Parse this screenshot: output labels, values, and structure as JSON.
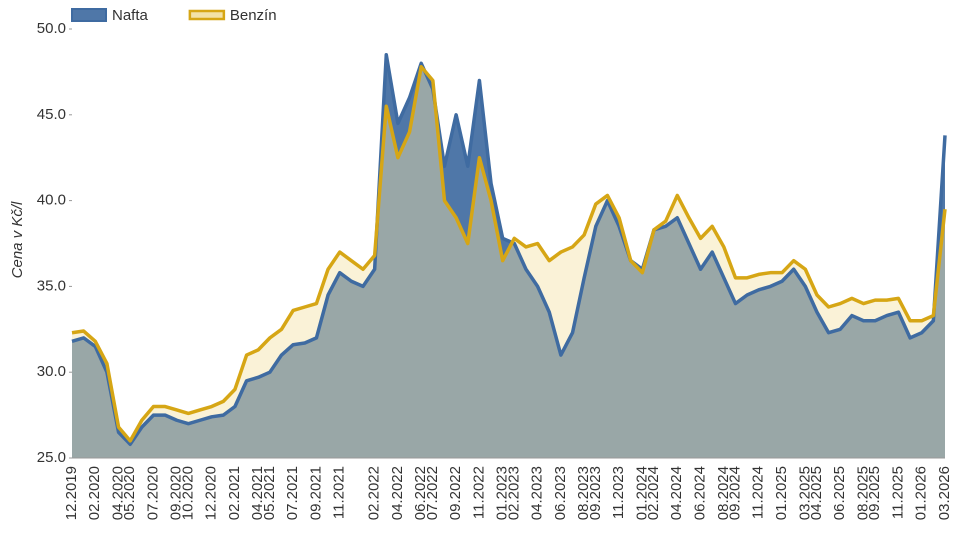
{
  "chart_data": {
    "type": "area",
    "y_label": "Cena v Kč/l",
    "x": [
      "12.2019",
      null,
      "02.2020",
      null,
      "04.2020",
      "05.2020",
      null,
      "07.2020",
      null,
      "09.2020",
      "10.2020",
      null,
      "12.2020",
      null,
      "02.2021",
      null,
      "04.2021",
      "05.2021",
      null,
      "07.2021",
      null,
      "09.2021",
      null,
      "11.2021",
      null,
      null,
      "02.2022",
      null,
      "04.2022",
      null,
      "06.2022",
      "07.2022",
      null,
      "09.2022",
      null,
      "11.2022",
      null,
      "01.2023",
      "02.2023",
      null,
      "04.2023",
      null,
      "06.2023",
      null,
      "08.2023",
      "09.2023",
      null,
      "11.2023",
      null,
      "01.2024",
      "02.2024",
      null,
      "04.2024",
      null,
      "06.2024",
      null,
      "08.2024",
      "09.2024",
      null,
      "11.2024",
      null,
      "01.2025",
      null,
      "03.2025",
      "04.2025",
      null,
      "06.2025",
      null,
      "08.2025",
      "09.2025",
      null,
      "11.2025",
      null,
      "01.2026",
      null,
      "03.2026"
    ],
    "series": [
      {
        "name": "Nafta",
        "color": "#3f6ba1",
        "fill": "#4f77a8",
        "values": [
          31.8,
          32.0,
          31.5,
          30.0,
          26.5,
          25.8,
          26.8,
          27.5,
          27.5,
          27.2,
          27.0,
          27.2,
          27.4,
          27.5,
          28.0,
          29.5,
          29.7,
          30.0,
          31.0,
          31.6,
          31.7,
          32.0,
          34.5,
          35.8,
          35.3,
          35.0,
          36.0,
          48.5,
          44.5,
          46.0,
          48.0,
          46.5,
          42.0,
          45.0,
          42.0,
          47.0,
          41.0,
          37.8,
          37.5,
          36.0,
          35.0,
          33.5,
          31.0,
          32.3,
          35.5,
          38.5,
          40.0,
          38.5,
          36.5,
          36.0,
          38.3,
          38.5,
          39.0,
          37.5,
          36.0,
          37.0,
          35.5,
          34.0,
          34.5,
          34.8,
          35.0,
          35.3,
          36.0,
          35.0,
          33.5,
          32.3,
          32.5,
          33.3,
          33.0,
          33.0,
          33.3,
          33.5,
          32.0,
          32.3,
          33.0,
          43.8
        ]
      },
      {
        "name": "Benzín",
        "color": "#d6a615",
        "fill": "#f3e2a6",
        "values": [
          32.3,
          32.4,
          31.8,
          30.5,
          26.8,
          26.0,
          27.2,
          28.0,
          28.0,
          27.8,
          27.6,
          27.8,
          28.0,
          28.3,
          29.0,
          31.0,
          31.3,
          32.0,
          32.5,
          33.6,
          33.8,
          34.0,
          36.0,
          37.0,
          36.5,
          36.0,
          36.8,
          45.5,
          42.5,
          44.0,
          47.8,
          47.0,
          40.0,
          39.0,
          37.5,
          42.5,
          40.0,
          36.5,
          37.8,
          37.3,
          37.5,
          36.5,
          37.0,
          37.3,
          38.0,
          39.8,
          40.3,
          39.0,
          36.5,
          35.8,
          38.3,
          38.8,
          40.3,
          39.0,
          37.8,
          38.5,
          37.3,
          35.5,
          35.5,
          35.7,
          35.8,
          35.8,
          36.5,
          36.0,
          34.5,
          33.8,
          34.0,
          34.3,
          34.0,
          34.2,
          34.2,
          34.3,
          33.0,
          33.0,
          33.3,
          39.5
        ]
      }
    ],
    "ylim": [
      25,
      50
    ],
    "yticks": [
      {
        "value": 25,
        "label": "25.0"
      },
      {
        "value": 30,
        "label": "30.0"
      },
      {
        "value": 35,
        "label": "35.0"
      },
      {
        "value": 40,
        "label": "40.0"
      },
      {
        "value": 45,
        "label": "45.0"
      },
      {
        "value": 50,
        "label": "50.0"
      }
    ],
    "grid": false,
    "legend": "top-left"
  }
}
